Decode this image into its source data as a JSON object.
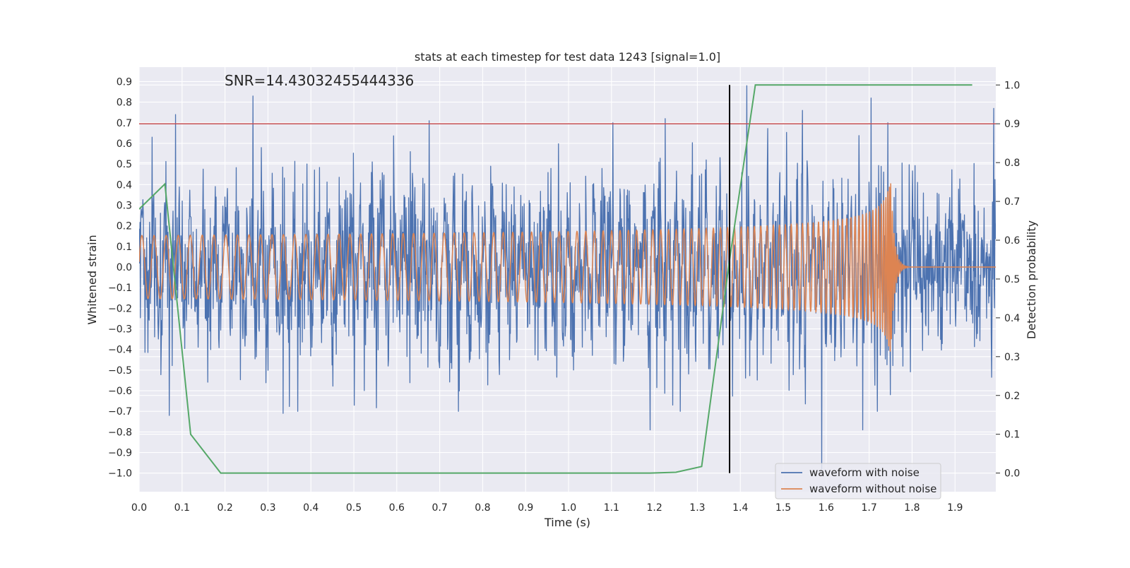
{
  "chart_data": {
    "type": "line",
    "title": "stats at each timestep for test data 1243 [signal=1.0]",
    "xlabel": "Time (s)",
    "ylabel_left": "Whitened strain",
    "ylabel_right": "Detection probability",
    "annotation": "SNR=14.43032455444336",
    "xlim": [
      0.0,
      1.995
    ],
    "ylim_left": [
      -1.09,
      0.97
    ],
    "ylim_right": [
      -0.048,
      1.046
    ],
    "x_ticks": [
      0.0,
      0.1,
      0.2,
      0.3,
      0.4,
      0.5,
      0.6,
      0.7,
      0.8,
      0.9,
      1.0,
      1.1,
      1.2,
      1.3,
      1.4,
      1.5,
      1.6,
      1.7,
      1.8,
      1.9
    ],
    "x_tick_labels": [
      "0.0",
      "0.1",
      "0.2",
      "0.3",
      "0.4",
      "0.5",
      "0.6",
      "0.7",
      "0.8",
      "0.9",
      "1.0",
      "1.1",
      "1.2",
      "1.3",
      "1.4",
      "1.5",
      "1.6",
      "1.7",
      "1.8",
      "1.9"
    ],
    "y_left_ticks": [
      0.9,
      0.8,
      0.7,
      0.6,
      0.5,
      0.4,
      0.3,
      0.2,
      0.1,
      0.0,
      -0.1,
      -0.2,
      -0.3,
      -0.4,
      -0.5,
      -0.6,
      -0.7,
      -0.8,
      -0.9,
      -1.0
    ],
    "y_left_tick_labels": [
      "0.9",
      "0.8",
      "0.7",
      "0.6",
      "0.5",
      "0.4",
      "0.3",
      "0.2",
      "0.1",
      "0.0",
      "−0.1",
      "−0.2",
      "−0.3",
      "−0.4",
      "−0.5",
      "−0.6",
      "−0.7",
      "−0.8",
      "−0.9",
      "−1.0"
    ],
    "y_right_ticks": [
      1.0,
      0.9,
      0.8,
      0.7,
      0.6,
      0.5,
      0.4,
      0.3,
      0.2,
      0.1,
      0.0
    ],
    "y_right_tick_labels": [
      "1.0",
      "0.9",
      "0.8",
      "0.7",
      "0.6",
      "0.5",
      "0.4",
      "0.3",
      "0.2",
      "0.1",
      "0.0"
    ],
    "grid": true,
    "legend_position": "bottom-right",
    "colors": {
      "background": "#eaeaf2",
      "grid": "#ffffff",
      "noisy": "#4c72b0",
      "clean": "#dd8452",
      "probability": "#55a868",
      "threshold": "#c44e52",
      "marker": "#000000"
    },
    "series": [
      {
        "name": "waveform with noise",
        "axis": "left",
        "color": "#4c72b0",
        "generator": "noise",
        "n_points": 2048,
        "sigma": 0.2,
        "peaks": [
          [
            0.03,
            0.63
          ],
          [
            0.085,
            0.74
          ],
          [
            0.265,
            0.83
          ],
          [
            0.675,
            0.71
          ],
          [
            1.225,
            0.72
          ],
          [
            1.415,
            0.88
          ],
          [
            1.545,
            0.76
          ],
          [
            1.705,
            0.82
          ],
          [
            1.99,
            0.77
          ],
          [
            0.07,
            -0.72
          ],
          [
            0.335,
            -0.71
          ],
          [
            1.19,
            -0.79
          ],
          [
            1.59,
            -0.98
          ],
          [
            1.685,
            -0.79
          ]
        ]
      },
      {
        "name": "waveform without noise",
        "axis": "left",
        "color": "#dd8452",
        "generator": "chirp",
        "amplitude_start": 0.07,
        "amplitude_peak": 0.45,
        "frequency_start_hz": 35,
        "merger_time": 1.75,
        "ringdown_end": 1.79
      },
      {
        "name": "",
        "axis": "right",
        "color": "#55a868",
        "x": [
          0.0,
          0.06,
          0.12,
          0.19,
          1.19,
          1.25,
          1.31,
          1.375,
          1.435,
          1.94
        ],
        "y": [
          0.68,
          0.745,
          0.1,
          0.0,
          0.0,
          0.002,
          0.017,
          0.55,
          1.0,
          1.0
        ]
      }
    ],
    "hline_threshold_right": 0.9,
    "vline_marker": {
      "x": 1.375,
      "ymin_right": 0.0,
      "ymax_right": 1.0
    }
  }
}
